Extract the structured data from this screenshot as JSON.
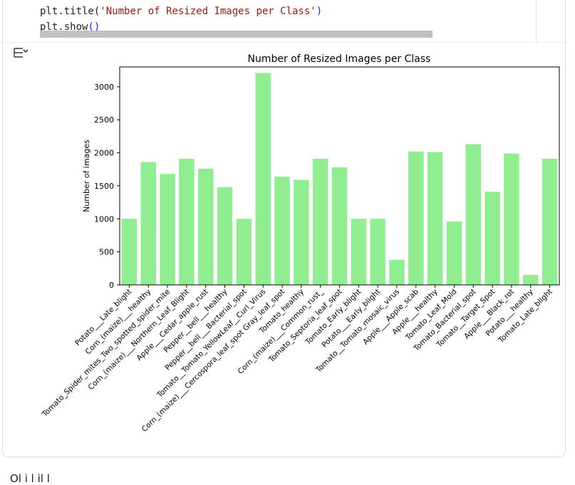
{
  "code": {
    "line1": {
      "fn": "plt.title(",
      "str": "'Number of Resized Images per Class'",
      "close": ")"
    },
    "line2": {
      "fn": "plt.show",
      "paren": "()"
    }
  },
  "output_icon": "output-collapse-icon",
  "colors": {
    "bar": "#90ee90",
    "code_string": "#a31515",
    "code_paren": "#0431fa"
  },
  "chart_data": {
    "type": "bar",
    "title": "Number of Resized Images per Class",
    "xlabel": "",
    "ylabel": "Number of images",
    "ylim": [
      0,
      3300
    ],
    "yticks": [
      0,
      500,
      1000,
      1500,
      2000,
      2500,
      3000
    ],
    "categories": [
      "Potato___Late_blight",
      "Corn_(maize)___healthy",
      "Tomato_Spider_mites_Two_spotted_spider_mite",
      "Corn_(maize)___Northern_Leaf_Blight",
      "Apple___Cedar_apple_rust",
      "Pepper__bell___healthy",
      "Pepper__bell___Bacterial_spot",
      "Tomato__Tomato_YellowLeaf__Curl_Virus",
      "Corn_(maize)___Cercospora_leaf_spot Gray_leaf_spot",
      "Tomato_healthy",
      "Corn_(maize)___Common_rust_",
      "Tomato_Septoria_leaf_spot",
      "Tomato_Early_blight",
      "Potato___Early_blight",
      "Tomato__Tomato_mosaic_virus",
      "Apple___Apple_scab",
      "Apple___healthy",
      "Tomato_Leaf_Mold",
      "Tomato_Bacterial_spot",
      "Tomato__Target_Spot",
      "Apple___Black_rot",
      "Potato___healthy",
      "Tomato_Late_blight"
    ],
    "values": [
      1000,
      1860,
      1680,
      1910,
      1760,
      1480,
      1000,
      3210,
      1640,
      1590,
      1910,
      1780,
      1000,
      1000,
      380,
      2020,
      2010,
      960,
      2130,
      1410,
      1990,
      150,
      1910
    ]
  },
  "footer_text": "Ol  i l        il       l"
}
